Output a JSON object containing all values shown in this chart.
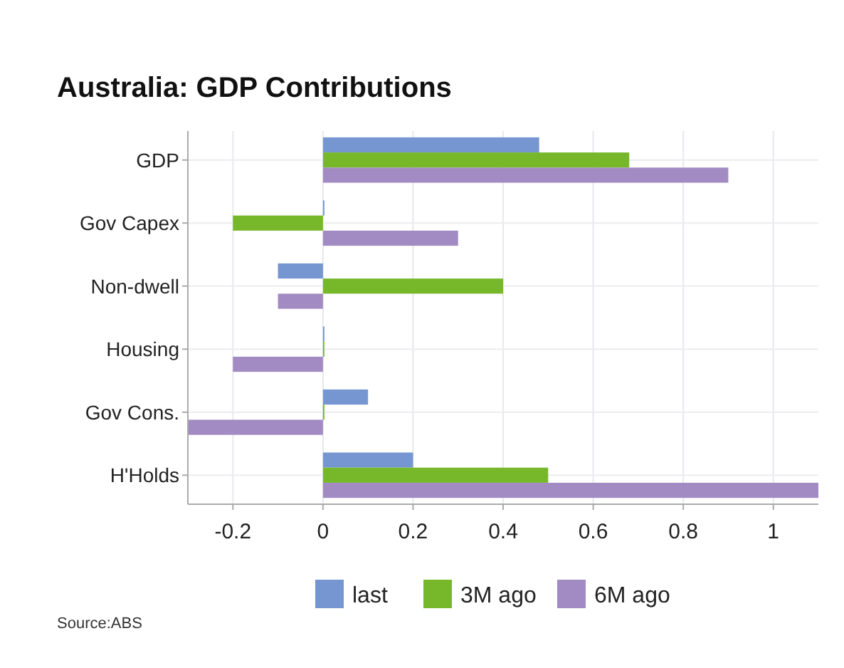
{
  "chart_data": {
    "type": "bar",
    "orientation": "horizontal",
    "title": "Australia: GDP Contributions",
    "categories": [
      "GDP",
      "Gov Capex",
      "Non-dwell",
      "Housing",
      "Gov Cons.",
      "H'Holds"
    ],
    "series": [
      {
        "name": "last",
        "color": "#7596d0",
        "values": [
          0.48,
          0,
          -0.1,
          0,
          0.1,
          0.2
        ]
      },
      {
        "name": "3M ago",
        "color": "#77b82a",
        "values": [
          0.68,
          -0.2,
          0.4,
          0,
          0,
          0.5
        ]
      },
      {
        "name": "6M ago",
        "color": "#a28bc2",
        "values": [
          0.9,
          0.3,
          -0.1,
          -0.2,
          -0.3,
          1.1
        ]
      }
    ],
    "xlim": [
      -0.3,
      1.1
    ],
    "xticks": [
      -0.2,
      0,
      0.2,
      0.4,
      0.6,
      0.8,
      1
    ],
    "grid": true,
    "legend": "bottom",
    "annotations": [
      "Source:ABS"
    ]
  }
}
